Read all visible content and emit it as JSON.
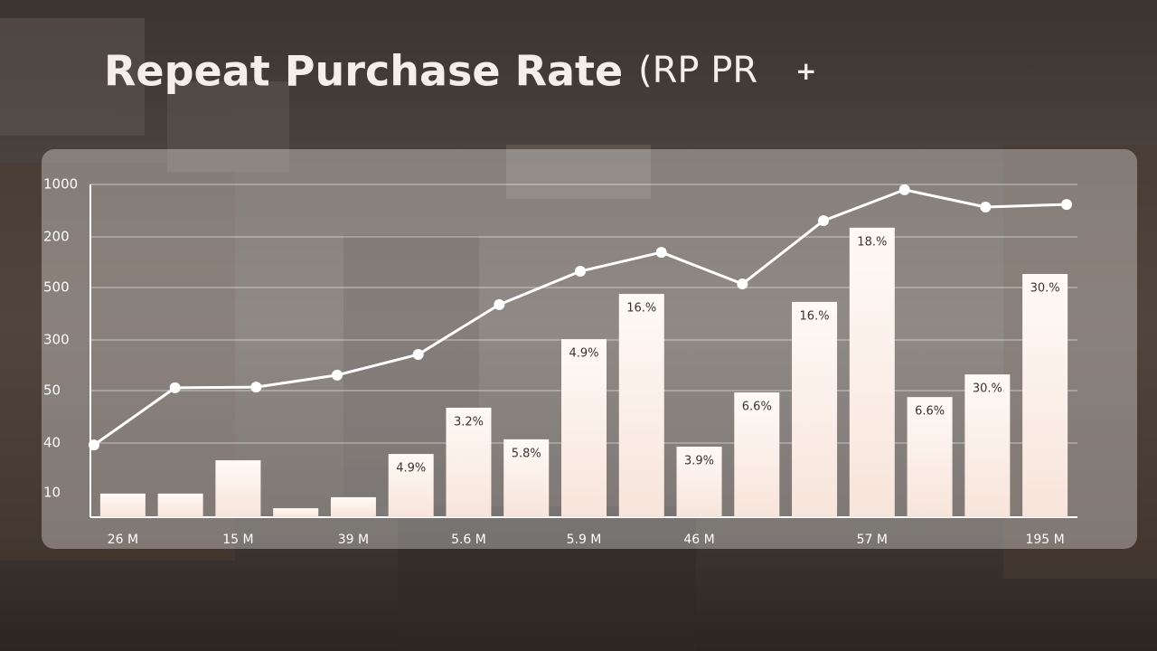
{
  "chart_data": {
    "type": "bar",
    "title": "Repeat Purchase Rate",
    "title_suffix": "(RP PR",
    "title_mark": "+",
    "y_labels": [
      "1000",
      "200",
      "500",
      "300",
      "50",
      "40",
      "10"
    ],
    "ylim": [
      0,
      1000
    ],
    "categories": [
      "26 M",
      null,
      "15 M",
      null,
      "39 M",
      null,
      "5.6 M",
      null,
      "5.9 M",
      null,
      "46 M",
      null,
      null,
      "57 M",
      null,
      null,
      "195 M"
    ],
    "values": [
      71,
      71,
      171,
      27,
      60,
      190,
      329,
      234,
      535,
      671,
      212,
      375,
      647,
      870,
      361,
      429,
      731
    ],
    "bar_labels": [
      null,
      null,
      null,
      null,
      null,
      "4.9%",
      "3.2%",
      "5.8%",
      "4.9%",
      "16.%",
      "3.9%",
      "6.6%",
      "16.%",
      "18.%",
      "6.6%",
      "30.%",
      "30.%"
    ],
    "color": "#fcefe8",
    "line": {
      "color": "#ffffff",
      "values": [
        217,
        389,
        391,
        427,
        489,
        639,
        739,
        796,
        701,
        891,
        984,
        932,
        940
      ]
    },
    "grid": true
  }
}
